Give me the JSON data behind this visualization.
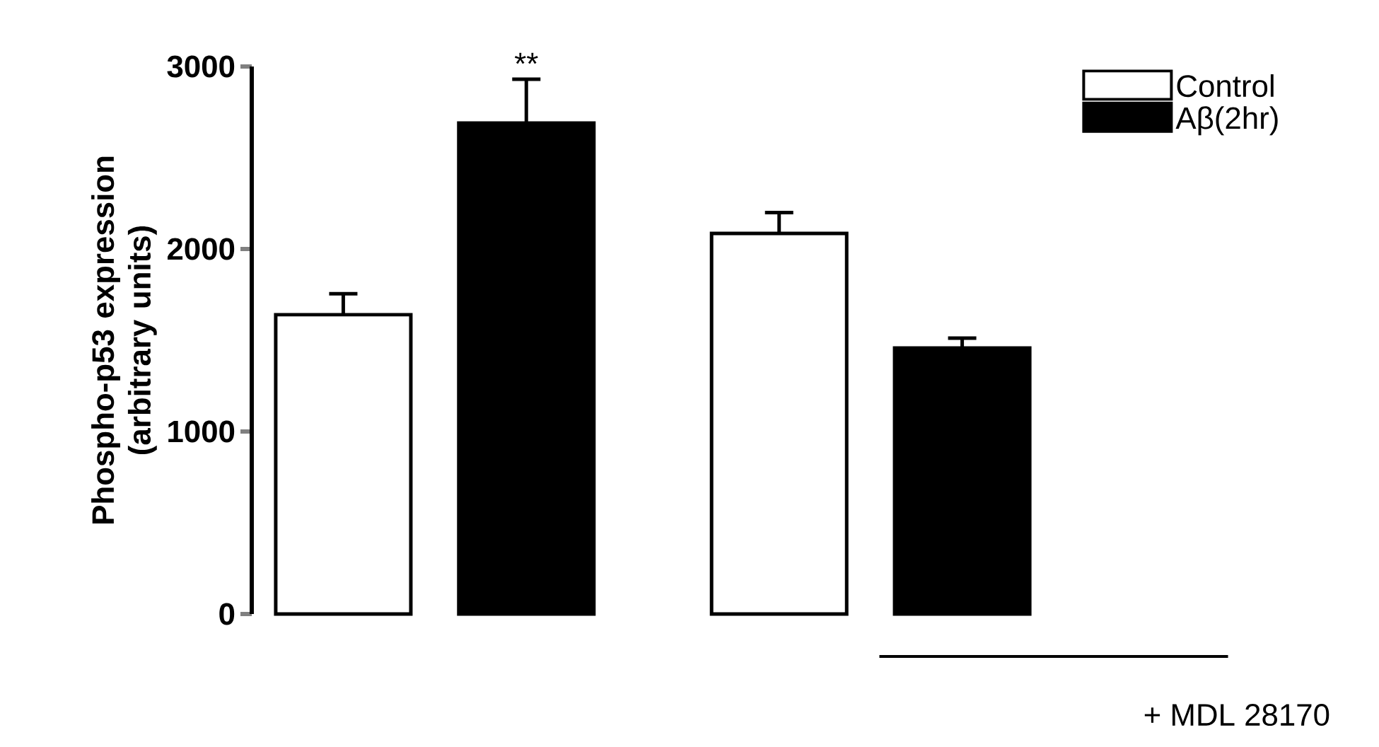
{
  "chart_data": {
    "type": "bar",
    "ylabel": "Phospho-p53 expression (arbitrary units)",
    "categories": [
      null,
      null
    ],
    "series": [
      {
        "name": "Control",
        "color": "#ffffff",
        "values": [
          1640,
          2085
        ],
        "errors": [
          115,
          115
        ]
      },
      {
        "name": "Aβ(2hr)",
        "color": "#000000",
        "values": [
          2690,
          1457
        ],
        "errors": [
          240,
          55
        ]
      }
    ],
    "ylim": [
      0,
      3000
    ],
    "yticks": [
      0,
      1000,
      2000,
      3000
    ],
    "grid": false,
    "legend": "top right",
    "annotations": [
      "**",
      "+ MDL 28170"
    ]
  }
}
